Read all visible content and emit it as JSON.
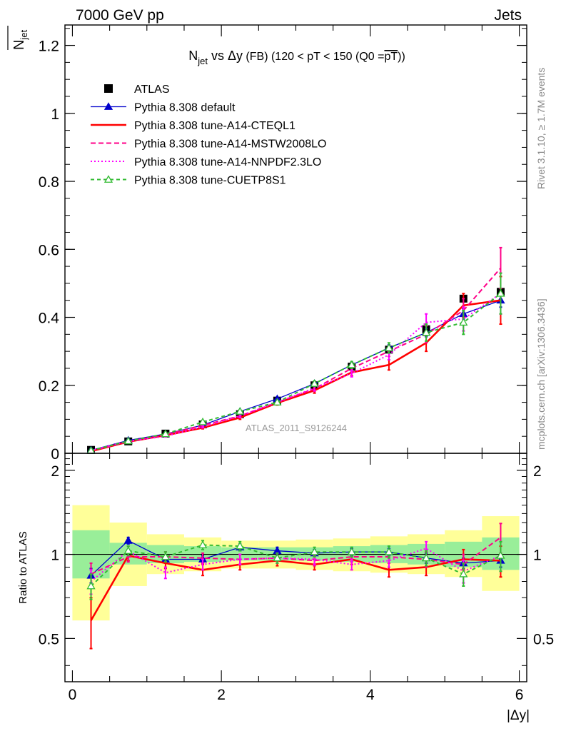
{
  "header": {
    "left": "7000 GeV pp",
    "right": "Jets"
  },
  "side_labels": {
    "rivet": "Rivet 3.1.10, ≥ 1.7M events",
    "mcplots": "mcplots.cern.ch [arXiv:1306.3436]"
  },
  "watermark": "ATLAS_2011_S9126244",
  "chart_data": [
    {
      "type": "line",
      "title": "N_jet vs Δy (FB) (120 < pT < 150 (Q0 = pT))",
      "title_parts": {
        "n": "N",
        "jet_sub": "jet",
        "vs": " vs ",
        "delta_y": "Δy",
        "rest_prefix": " (FB) (120 < pT < 150 (Q0 =",
        "overline": "pT",
        "rest_suffix": "))"
      },
      "ylabel": "N_jet (overlined)",
      "ylabel_parts": {
        "n": "N",
        "sub": "jet"
      },
      "xlabel": "|Δy|",
      "xlim": [
        -0.1,
        6.1
      ],
      "ylim": [
        0,
        1.26
      ],
      "y_ticks": [
        0,
        0.2,
        0.4,
        0.6,
        0.8,
        1,
        1.2
      ],
      "y_tick_labels": [
        "0",
        "0.2",
        "0.4",
        "0.6",
        "0.8",
        "1",
        "1.2"
      ],
      "x_ticks": [
        0,
        2,
        4,
        6
      ],
      "x_tick_labels": [
        "0",
        "2",
        "4",
        "6"
      ],
      "x": [
        0.25,
        0.75,
        1.25,
        1.75,
        2.25,
        2.75,
        3.25,
        3.75,
        4.25,
        4.75,
        5.25,
        5.75
      ],
      "legend": {
        "position": "top-left"
      },
      "series": [
        {
          "name": "ATLAS",
          "style": "data",
          "color": "#000000",
          "values": [
            0.01,
            0.035,
            0.058,
            0.085,
            0.115,
            0.155,
            0.2,
            0.255,
            0.305,
            0.365,
            0.455,
            0.475
          ],
          "errors": [
            0.001,
            0.001,
            0.002,
            0.002,
            0.003,
            0.004,
            0.005,
            0.007,
            0.009,
            0.012,
            0.015,
            0.018
          ]
        },
        {
          "name": "Pythia 8.308 default",
          "style": "solid-triangle",
          "color": "#0000cc",
          "values": [
            0.009,
            0.038,
            0.057,
            0.083,
            0.123,
            0.16,
            0.205,
            0.26,
            0.31,
            0.355,
            0.41,
            0.45
          ],
          "errors": [
            0.001,
            0.001,
            0.002,
            0.002,
            0.003,
            0.004,
            0.005,
            0.007,
            0.009,
            0.012,
            0.015,
            0.02
          ]
        },
        {
          "name": "Pythia 8.308 tune-A14-CTEQL1",
          "style": "solid-thick",
          "color": "#ff0000",
          "values": [
            0.006,
            0.034,
            0.053,
            0.075,
            0.105,
            0.148,
            0.185,
            0.238,
            0.26,
            0.325,
            0.435,
            0.45
          ],
          "errors": [
            0.001,
            0.002,
            0.002,
            0.003,
            0.005,
            0.006,
            0.008,
            0.01,
            0.015,
            0.025,
            0.035,
            0.07
          ]
        },
        {
          "name": "Pythia 8.308 tune-A14-MSTW2008LO",
          "style": "dashed",
          "color": "#ff0088",
          "values": [
            0.008,
            0.034,
            0.055,
            0.082,
            0.11,
            0.15,
            0.19,
            0.25,
            0.3,
            0.35,
            0.42,
            0.545
          ],
          "errors": [
            0.001,
            0.002,
            0.002,
            0.003,
            0.005,
            0.006,
            0.008,
            0.01,
            0.015,
            0.025,
            0.035,
            0.06
          ]
        },
        {
          "name": "Pythia 8.308 tune-A14-NNPDF2.3LO",
          "style": "dotted",
          "color": "#ff00ff",
          "values": [
            0.008,
            0.036,
            0.05,
            0.078,
            0.11,
            0.15,
            0.192,
            0.235,
            0.29,
            0.385,
            0.395,
            0.47
          ],
          "errors": [
            0.001,
            0.002,
            0.002,
            0.003,
            0.005,
            0.006,
            0.008,
            0.01,
            0.015,
            0.025,
            0.035,
            0.06
          ]
        },
        {
          "name": "Pythia 8.308 tune-CUETP8S1",
          "style": "dashed-open-triangle",
          "color": "#33bb33",
          "values": [
            0.008,
            0.036,
            0.057,
            0.092,
            0.123,
            0.15,
            0.205,
            0.26,
            0.31,
            0.355,
            0.385,
            0.47
          ],
          "errors": [
            0.001,
            0.002,
            0.002,
            0.003,
            0.005,
            0.006,
            0.008,
            0.01,
            0.015,
            0.025,
            0.035,
            0.06
          ]
        }
      ]
    },
    {
      "type": "line",
      "title": "",
      "ylabel": "Ratio to ATLAS",
      "xlabel": "|Δy|",
      "xlim": [
        -0.1,
        6.1
      ],
      "ylim": [
        0.35,
        2.3
      ],
      "y_scale": "log",
      "y_ticks": [
        0.5,
        1,
        2
      ],
      "y_tick_labels": [
        "0.5",
        "1",
        "2"
      ],
      "x_ticks": [
        0,
        2,
        4,
        6
      ],
      "x_tick_labels": [
        "0",
        "2",
        "4",
        "6"
      ],
      "reference_line": 1,
      "x": [
        0.25,
        0.75,
        1.25,
        1.75,
        2.25,
        2.75,
        3.25,
        3.75,
        4.25,
        4.75,
        5.25,
        5.75
      ],
      "bins": [
        0,
        0.5,
        1,
        1.5,
        2,
        2.5,
        3,
        3.5,
        4,
        4.5,
        5,
        5.5,
        6
      ],
      "bands": {
        "inner_color": "#99ee99",
        "outer_color": "#ffff99",
        "inner": [
          [
            0.82,
            1.22
          ],
          [
            0.92,
            1.1
          ],
          [
            0.93,
            1.08
          ],
          [
            0.94,
            1.07
          ],
          [
            0.95,
            1.06
          ],
          [
            0.95,
            1.06
          ],
          [
            0.95,
            1.06
          ],
          [
            0.94,
            1.07
          ],
          [
            0.93,
            1.08
          ],
          [
            0.92,
            1.09
          ],
          [
            0.9,
            1.11
          ],
          [
            0.88,
            1.15
          ]
        ],
        "outer": [
          [
            0.58,
            1.5
          ],
          [
            0.77,
            1.3
          ],
          [
            0.85,
            1.18
          ],
          [
            0.87,
            1.15
          ],
          [
            0.89,
            1.12
          ],
          [
            0.89,
            1.12
          ],
          [
            0.88,
            1.13
          ],
          [
            0.87,
            1.14
          ],
          [
            0.86,
            1.16
          ],
          [
            0.85,
            1.18
          ],
          [
            0.83,
            1.22
          ],
          [
            0.74,
            1.37
          ]
        ]
      },
      "series": [
        {
          "name": "Pythia 8.308 default",
          "color": "#0000cc",
          "style": "solid-triangle",
          "values": [
            0.84,
            1.12,
            0.96,
            0.96,
            1.06,
            1.03,
            1.01,
            1.02,
            1.02,
            0.97,
            0.93,
            0.95
          ],
          "errors": [
            0.05,
            0.03,
            0.03,
            0.03,
            0.03,
            0.03,
            0.03,
            0.03,
            0.03,
            0.04,
            0.04,
            0.05
          ]
        },
        {
          "name": "Pythia 8.308 tune-A14-CTEQL1",
          "color": "#ff0000",
          "style": "solid-thick",
          "values": [
            0.58,
            0.99,
            0.93,
            0.88,
            0.92,
            0.95,
            0.92,
            0.96,
            0.88,
            0.9,
            0.96,
            0.95
          ],
          "errors": [
            0.12,
            0.04,
            0.04,
            0.04,
            0.04,
            0.04,
            0.04,
            0.04,
            0.05,
            0.06,
            0.08,
            0.12
          ]
        },
        {
          "name": "Pythia 8.308 tune-A14-MSTW2008LO",
          "color": "#ff0088",
          "style": "dashed",
          "values": [
            0.85,
            0.98,
            0.98,
            0.97,
            0.96,
            0.97,
            0.95,
            0.98,
            0.98,
            0.96,
            0.92,
            1.15
          ],
          "errors": [
            0.08,
            0.04,
            0.04,
            0.04,
            0.04,
            0.04,
            0.04,
            0.04,
            0.05,
            0.06,
            0.08,
            0.14
          ]
        },
        {
          "name": "Pythia 8.308 tune-A14-NNPDF2.3LO",
          "color": "#ff00ff",
          "style": "dotted",
          "values": [
            0.8,
            1.03,
            0.86,
            0.92,
            0.96,
            0.97,
            0.96,
            0.92,
            0.95,
            1.05,
            0.87,
            0.99
          ],
          "errors": [
            0.08,
            0.04,
            0.04,
            0.04,
            0.04,
            0.04,
            0.04,
            0.04,
            0.05,
            0.06,
            0.08,
            0.12
          ]
        },
        {
          "name": "Pythia 8.308 tune-CUETP8S1",
          "color": "#33bb33",
          "style": "dashed-open-triangle",
          "values": [
            0.77,
            1.03,
            0.98,
            1.08,
            1.07,
            0.97,
            1.02,
            1.02,
            1.02,
            0.97,
            0.85,
            0.99
          ],
          "errors": [
            0.08,
            0.04,
            0.04,
            0.04,
            0.04,
            0.04,
            0.04,
            0.04,
            0.05,
            0.06,
            0.08,
            0.12
          ]
        }
      ]
    }
  ]
}
